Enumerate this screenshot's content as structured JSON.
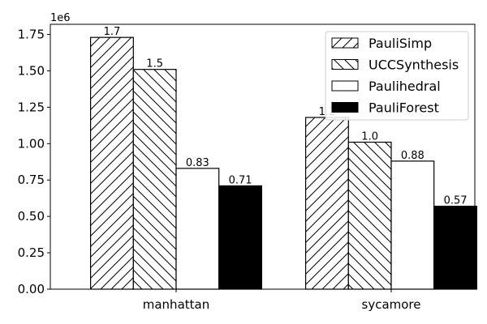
{
  "chart_data": {
    "type": "bar",
    "categories": [
      "manhattan",
      "sycamore"
    ],
    "series": [
      {
        "name": "PauliSimp",
        "values": [
          1730000,
          1180000
        ],
        "labels": [
          "1.7",
          "1.2"
        ],
        "fill": "#ffffff",
        "hatch": "forward"
      },
      {
        "name": "UCCSynthesis",
        "values": [
          1510000,
          1010000
        ],
        "labels": [
          "1.5",
          "1.0"
        ],
        "fill": "#ffffff",
        "hatch": "back"
      },
      {
        "name": "Paulihedral",
        "values": [
          830000,
          880000
        ],
        "labels": [
          "0.83",
          "0.88"
        ],
        "fill": "#ffffff",
        "hatch": "none"
      },
      {
        "name": "PauliForest",
        "values": [
          710000,
          570000
        ],
        "labels": [
          "0.71",
          "0.57"
        ],
        "fill": "#000000",
        "hatch": "none"
      }
    ],
    "y_offset_label": "1e6",
    "y_scale": 1000000,
    "ylim": [
      0,
      1820000
    ],
    "yticks": [
      0,
      250000,
      500000,
      750000,
      1000000,
      1250000,
      1500000,
      1750000
    ],
    "ytick_labels": [
      "0.00",
      "0.25",
      "0.50",
      "0.75",
      "1.00",
      "1.25",
      "1.50",
      "1.75"
    ],
    "legend_position": "top-right",
    "grid": false,
    "title": "",
    "xlabel": "",
    "ylabel": ""
  }
}
